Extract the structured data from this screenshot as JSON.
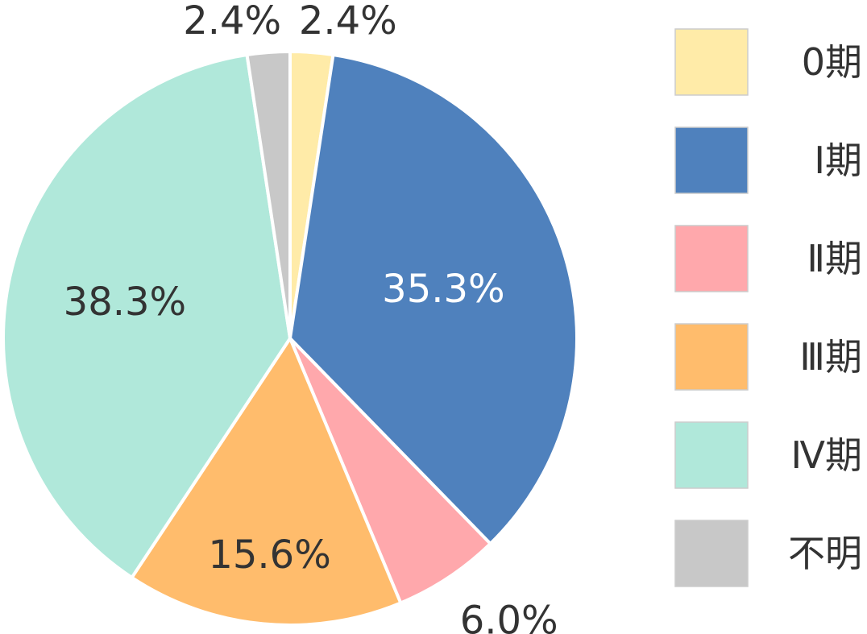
{
  "chart_data": {
    "type": "pie",
    "title": "",
    "legend_position": "right",
    "slices": [
      {
        "name": "0期",
        "value": 2.4,
        "label": "2.4%",
        "color": "#FFEBA8",
        "label_color": "#333333"
      },
      {
        "name": "Ⅰ期",
        "value": 35.3,
        "label": "35.3%",
        "color": "#4F81BD",
        "label_color": "#FFFFFF"
      },
      {
        "name": "Ⅱ期",
        "value": 6.0,
        "label": "6.0%",
        "color": "#FFA8AC",
        "label_color": "#333333"
      },
      {
        "name": "Ⅲ期",
        "value": 15.6,
        "label": "15.6%",
        "color": "#FFBC6C",
        "label_color": "#333333"
      },
      {
        "name": "Ⅳ期",
        "value": 38.3,
        "label": "38.3%",
        "color": "#B0E8DA",
        "label_color": "#333333"
      },
      {
        "name": "不明",
        "value": 2.4,
        "label": "2.4%",
        "color": "#C8C8C8",
        "label_color": "#333333"
      }
    ]
  }
}
